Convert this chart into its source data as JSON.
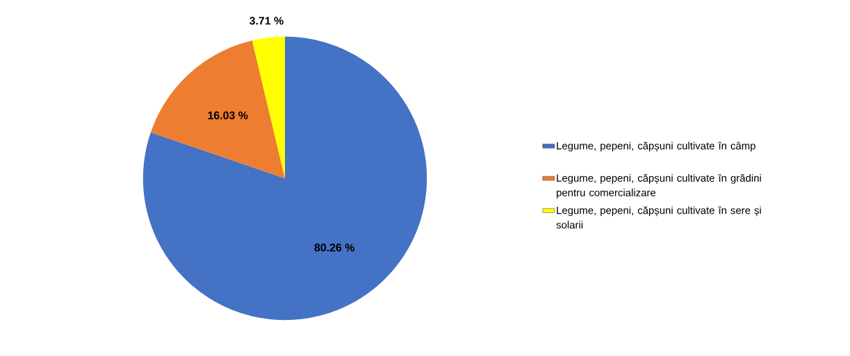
{
  "chart_data": {
    "type": "pie",
    "categories": [
      "Legume, pepeni, căpșuni cultivate în câmp",
      "Legume, pepeni, căpșuni cultivate în grădini pentru comercializare",
      "Legume, pepeni, căpșuni cultivate în sere și solarii"
    ],
    "values": [
      80.26,
      16.03,
      3.71
    ],
    "colors": [
      "#4472c4",
      "#ed7d31",
      "#ffff00"
    ],
    "value_labels": [
      "80.26 %",
      "16.03 %",
      "3.71 %"
    ],
    "legend": "right"
  }
}
